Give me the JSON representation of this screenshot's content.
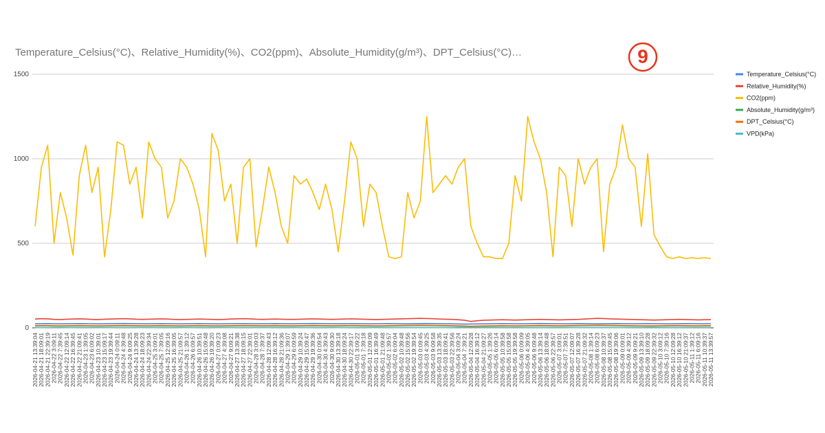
{
  "chart_data": {
    "type": "line",
    "title": "Temperature_Celsius(°C)、Relative_Humidity(%)、CO2(ppm)、Absolute_Humidity(g/m³)、DPT_Celsius(°C)…",
    "annotation": "9",
    "categories": [
      "2026-04-21 13:39:04",
      "2026-04-21 18:09:01",
      "2026-04-21 22:39:19",
      "2026-04-22 3:09:11",
      "2026-04-22 7:39:45",
      "2026-04-22 12:09:14",
      "2026-04-22 16:39:45",
      "2026-04-22 21:09:41",
      "2026-04-23 1:39:05",
      "2026-04-23 6:09:02",
      "2026-04-23 10:39:01",
      "2026-04-23 15:09:17",
      "2026-04-23 19:39:44",
      "2026-04-24 0:09:11",
      "2026-04-24 4:39:48",
      "2026-04-24 9:09:25",
      "2026-04-24 13:39:28",
      "2026-04-24 18:09:23",
      "2026-04-24 22:39:34",
      "2026-04-25 3:09:01",
      "2026-04-25 7:39:05",
      "2026-04-25 12:09:16",
      "2026-04-25 16:39:05",
      "2026-04-25 21:09:57",
      "2026-04-26 1:39:12",
      "2026-04-26 6:09:57",
      "2026-04-26 10:39:51",
      "2026-04-26 15:09:48",
      "2026-04-26 19:39:20",
      "2026-04-27 0:09:23",
      "2026-04-27 4:39:08",
      "2026-04-27 9:09:21",
      "2026-04-27 13:39:38",
      "2026-04-27 18:09:15",
      "2026-04-27 22:39:01",
      "2026-04-28 3:09:03",
      "2026-04-28 7:39:37",
      "2026-04-28 12:09:43",
      "2026-04-28 16:39:12",
      "2026-04-28 21:09:36",
      "2026-04-29 1:39:07",
      "2026-04-29 6:09:59",
      "2026-04-29 10:39:24",
      "2026-04-29 15:09:47",
      "2026-04-29 19:39:36",
      "2026-04-30 0:09:54",
      "2026-04-30 4:39:43",
      "2026-04-30 9:09:30",
      "2026-04-30 13:39:18",
      "2026-04-30 18:09:24",
      "2026-04-30 22:39:17",
      "2026-05-01 3:09:22",
      "2026-05-01 7:39:18",
      "2026-05-01 12:09:09",
      "2026-05-01 16:39:49",
      "2026-05-01 21:09:48",
      "2026-05-02 1:39:57",
      "2026-05-02 6:09:04",
      "2026-05-02 10:39:48",
      "2026-05-02 15:09:56",
      "2026-05-02 19:39:54",
      "2026-05-03 0:09:45",
      "2026-05-03 4:39:25",
      "2026-05-03 9:09:58",
      "2026-05-03 13:39:35",
      "2026-05-03 18:09:41",
      "2026-05-03 22:39:56",
      "2026-05-04 3:09:24",
      "2026-05-04 7:39:21",
      "2026-05-04 12:09:28",
      "2026-05-04 16:39:12",
      "2026-05-04 21:09:27",
      "2026-05-05 1:39:26",
      "2026-05-05 6:09:14",
      "2026-05-05 10:39:58",
      "2026-05-05 15:09:58",
      "2026-05-05 19:39:58",
      "2026-05-06 0:09:09",
      "2026-05-06 4:39:05",
      "2026-05-06 9:09:48",
      "2026-05-06 13:39:14",
      "2026-05-06 18:09:48",
      "2026-05-06 22:39:57",
      "2026-05-07 3:09:01",
      "2026-05-07 7:39:51",
      "2026-05-07 12:09:07",
      "2026-05-07 16:39:28",
      "2026-05-07 21:09:32",
      "2026-05-08 1:39:14",
      "2026-05-08 6:09:23",
      "2026-05-08 10:39:37",
      "2026-05-08 15:09:45",
      "2026-05-08 19:39:06",
      "2026-05-09 0:09:01",
      "2026-05-09 4:39:12",
      "2026-05-09 9:09:21",
      "2026-05-09 13:39:10",
      "2026-05-09 18:09:28",
      "2026-05-09 22:39:32",
      "2026-05-10 3:09:12",
      "2026-05-10 7:39:16",
      "2026-05-10 12:09:28",
      "2026-05-10 16:39:12",
      "2026-05-10 21:09:37",
      "2026-05-11 1:39:12",
      "2026-05-11 6:09:16",
      "2026-05-11 10:39:37",
      "2026-05-11 13:39:57"
    ],
    "series": [
      {
        "name": "Temperature_Celsius(°C)",
        "color": "#4285f4",
        "values": [
          24,
          24.5,
          25,
          24,
          23.5,
          24,
          24.5,
          25,
          24.5,
          24,
          23.5,
          24,
          24.5,
          25,
          25.5,
          25,
          24.5,
          24,
          24,
          24.5,
          25,
          24.5,
          24,
          23.5,
          24,
          24.5,
          25,
          24.5,
          24,
          23.5,
          24,
          24.5,
          25,
          25,
          24.5,
          24,
          24,
          24.5,
          25,
          24.5,
          24,
          24,
          24.5,
          25,
          25.5,
          25,
          24.5,
          24,
          24,
          24.5,
          25,
          24.5,
          24,
          23.5,
          24,
          24.5,
          25,
          24.5,
          24,
          24,
          24.5,
          25,
          25.5,
          25,
          24.5,
          24,
          23.5,
          23,
          22,
          22.5,
          23,
          23.5,
          24,
          24.5,
          25,
          24.5,
          24,
          24,
          24.5,
          25,
          25.5,
          25,
          24.5,
          24,
          24,
          24.5,
          25,
          24.5,
          24,
          23.5,
          24,
          24.5,
          25,
          24.5,
          24,
          24,
          24.5,
          25,
          24.5,
          24,
          23.5,
          24,
          24.5,
          25,
          24.5,
          24,
          24,
          24.5
        ]
      },
      {
        "name": "Relative_Humidity(%)",
        "color": "#ea4335",
        "values": [
          52,
          54,
          53,
          50,
          49,
          51,
          52,
          53,
          52,
          50,
          49,
          51,
          52,
          53,
          54,
          53,
          51,
          50,
          51,
          52,
          53,
          52,
          50,
          49,
          50,
          51,
          52,
          51,
          50,
          49,
          50,
          52,
          53,
          54,
          53,
          51,
          50,
          51,
          52,
          51,
          50,
          50,
          51,
          52,
          53,
          52,
          51,
          50,
          51,
          52,
          53,
          52,
          51,
          50,
          49,
          50,
          51,
          52,
          53,
          54,
          55,
          56,
          55,
          54,
          52,
          51,
          50,
          48,
          45,
          38,
          42,
          45,
          46,
          47,
          48,
          47,
          46,
          47,
          48,
          49,
          50,
          49,
          48,
          47,
          48,
          49,
          50,
          52,
          54,
          56,
          55,
          53,
          52,
          51,
          50,
          49,
          48,
          47,
          46,
          47,
          48,
          49,
          50,
          49,
          48,
          47,
          48,
          49
        ]
      },
      {
        "name": "CO2(ppm)",
        "color": "#fbbc04",
        "values": [
          600,
          950,
          1080,
          500,
          800,
          650,
          430,
          900,
          1080,
          800,
          950,
          420,
          700,
          1100,
          1080,
          850,
          950,
          650,
          1100,
          1000,
          950,
          650,
          750,
          1000,
          950,
          850,
          700,
          420,
          1150,
          1050,
          750,
          850,
          500,
          950,
          1000,
          480,
          700,
          950,
          800,
          600,
          500,
          900,
          850,
          880,
          800,
          700,
          850,
          700,
          450,
          750,
          1100,
          1000,
          600,
          850,
          800,
          600,
          420,
          410,
          420,
          800,
          650,
          750,
          1250,
          800,
          850,
          900,
          850,
          950,
          1000,
          600,
          500,
          420,
          420,
          410,
          410,
          500,
          900,
          750,
          1250,
          1100,
          1000,
          800,
          420,
          950,
          900,
          600,
          1000,
          850,
          950,
          1000,
          450,
          850,
          950,
          1200,
          1000,
          950,
          600,
          1030,
          550,
          480,
          420,
          410,
          420,
          410,
          415,
          410,
          415,
          410
        ]
      },
      {
        "name": "Absolute_Humidity(g/m³)",
        "color": "#34a853",
        "values": [
          11,
          11.5,
          11.5,
          10.5,
          10,
          10.5,
          11,
          11.5,
          11,
          10.5,
          10,
          10.5,
          11,
          11.5,
          12,
          11.5,
          11,
          10.5,
          10.5,
          11,
          11.5,
          11,
          10.5,
          10,
          10.5,
          11,
          11.5,
          11,
          10.5,
          10,
          10.5,
          11,
          11.5,
          12,
          11.5,
          11,
          10.5,
          11,
          11.5,
          11,
          10.5,
          10.5,
          11,
          11.5,
          12,
          11.5,
          11,
          10.5,
          11,
          11.5,
          12,
          11.5,
          11,
          10.5,
          10,
          10.5,
          11,
          11.5,
          12,
          12.5,
          13,
          13.5,
          13,
          12.5,
          12,
          11.5,
          11,
          10,
          9,
          7.5,
          8.5,
          9.5,
          10,
          10.5,
          11,
          10.5,
          10,
          10.5,
          11,
          11.5,
          12,
          11.5,
          11,
          10.5,
          11,
          11.5,
          12,
          12.5,
          13,
          13.5,
          13,
          12.5,
          12,
          11.5,
          11,
          10.5,
          10.5,
          10,
          10,
          10.5,
          11,
          11.5,
          11.5,
          11,
          10.5,
          10.5,
          11,
          11
        ]
      },
      {
        "name": "DPT_Celsius(°C)",
        "color": "#ff6d01",
        "values": [
          13,
          13.5,
          13.5,
          12.5,
          12,
          12.5,
          13,
          13.5,
          13,
          12.5,
          12,
          12.5,
          13,
          13.5,
          14,
          13.5,
          13,
          12.5,
          12.5,
          13,
          13.5,
          13,
          12.5,
          12,
          12.5,
          13,
          13.5,
          13,
          12.5,
          12,
          12.5,
          13,
          13.5,
          14,
          13.5,
          13,
          12.5,
          13,
          13.5,
          13,
          12.5,
          12.5,
          13,
          13.5,
          14,
          13.5,
          13,
          12.5,
          13,
          13.5,
          14,
          13.5,
          13,
          12.5,
          12,
          12.5,
          13,
          13.5,
          14,
          14.5,
          15,
          15.5,
          15,
          14.5,
          14,
          13.5,
          13,
          12,
          11,
          9.5,
          10.5,
          11.5,
          12,
          12.5,
          13,
          12.5,
          12,
          12.5,
          13,
          13.5,
          14,
          13.5,
          13,
          12.5,
          13,
          13.5,
          14,
          14.5,
          15,
          15.5,
          15,
          14.5,
          14,
          13.5,
          13,
          12.5,
          12.5,
          12,
          12,
          12.5,
          13,
          13.5,
          13.5,
          13,
          12.5,
          12.5,
          13,
          13
        ]
      },
      {
        "name": "VPD(kPa)",
        "color": "#46bdc6",
        "values": [
          1.4,
          1.4,
          1.5,
          1.5,
          1.5,
          1.4,
          1.4,
          1.5,
          1.5,
          1.5,
          1.4,
          1.4,
          1.4,
          1.5,
          1.5,
          1.5,
          1.4,
          1.4,
          1.4,
          1.4,
          1.5,
          1.5,
          1.5,
          1.4,
          1.4,
          1.4,
          1.5,
          1.5,
          1.5,
          1.4,
          1.4,
          1.4,
          1.5,
          1.5,
          1.5,
          1.4,
          1.4,
          1.4,
          1.5,
          1.5,
          1.5,
          1.4,
          1.4,
          1.4,
          1.5,
          1.5,
          1.5,
          1.4,
          1.4,
          1.4,
          1.5,
          1.5,
          1.5,
          1.4,
          1.4,
          1.4,
          1.5,
          1.4,
          1.4,
          1.3,
          1.3,
          1.3,
          1.4,
          1.4,
          1.4,
          1.4,
          1.5,
          1.6,
          1.7,
          1.8,
          1.7,
          1.6,
          1.6,
          1.6,
          1.5,
          1.5,
          1.5,
          1.5,
          1.5,
          1.5,
          1.5,
          1.5,
          1.5,
          1.5,
          1.5,
          1.4,
          1.4,
          1.3,
          1.3,
          1.3,
          1.3,
          1.4,
          1.4,
          1.4,
          1.5,
          1.5,
          1.5,
          1.6,
          1.6,
          1.5,
          1.5,
          1.5,
          1.5,
          1.5,
          1.5,
          1.5,
          1.5,
          1.5
        ]
      }
    ],
    "ylim": [
      0,
      1500
    ],
    "yticks": [
      0,
      500,
      1000,
      1500
    ],
    "grid": true,
    "legend": "right"
  }
}
